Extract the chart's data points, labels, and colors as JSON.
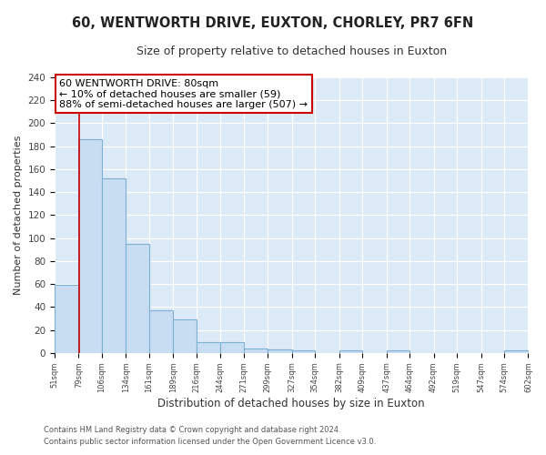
{
  "title1": "60, WENTWORTH DRIVE, EUXTON, CHORLEY, PR7 6FN",
  "title2": "Size of property relative to detached houses in Euxton",
  "xlabel": "Distribution of detached houses by size in Euxton",
  "ylabel": "Number of detached properties",
  "bin_edges": [
    51,
    79,
    106,
    134,
    161,
    189,
    216,
    244,
    271,
    299,
    327,
    354,
    382,
    409,
    437,
    464,
    492,
    519,
    547,
    574,
    602
  ],
  "bar_heights": [
    59,
    186,
    152,
    95,
    37,
    29,
    9,
    9,
    4,
    3,
    2,
    0,
    2,
    0,
    2,
    0,
    0,
    0,
    0,
    2
  ],
  "bar_color": "#c9ddf2",
  "bar_edge_color": "#7bafd4",
  "red_line_x": 80,
  "ylim": [
    0,
    240
  ],
  "yticks": [
    0,
    20,
    40,
    60,
    80,
    100,
    120,
    140,
    160,
    180,
    200,
    220,
    240
  ],
  "plot_bg_color": "#dce9f7",
  "fig_bg_color": "#ffffff",
  "grid_color": "#ffffff",
  "annotation_title": "60 WENTWORTH DRIVE: 80sqm",
  "annotation_line1": "← 10% of detached houses are smaller (59)",
  "annotation_line2": "88% of semi-detached houses are larger (507) →",
  "annotation_box_facecolor": "#ffffff",
  "annotation_box_edgecolor": "#cc0000",
  "footer1": "Contains HM Land Registry data © Crown copyright and database right 2024.",
  "footer2": "Contains public sector information licensed under the Open Government Licence v3.0."
}
